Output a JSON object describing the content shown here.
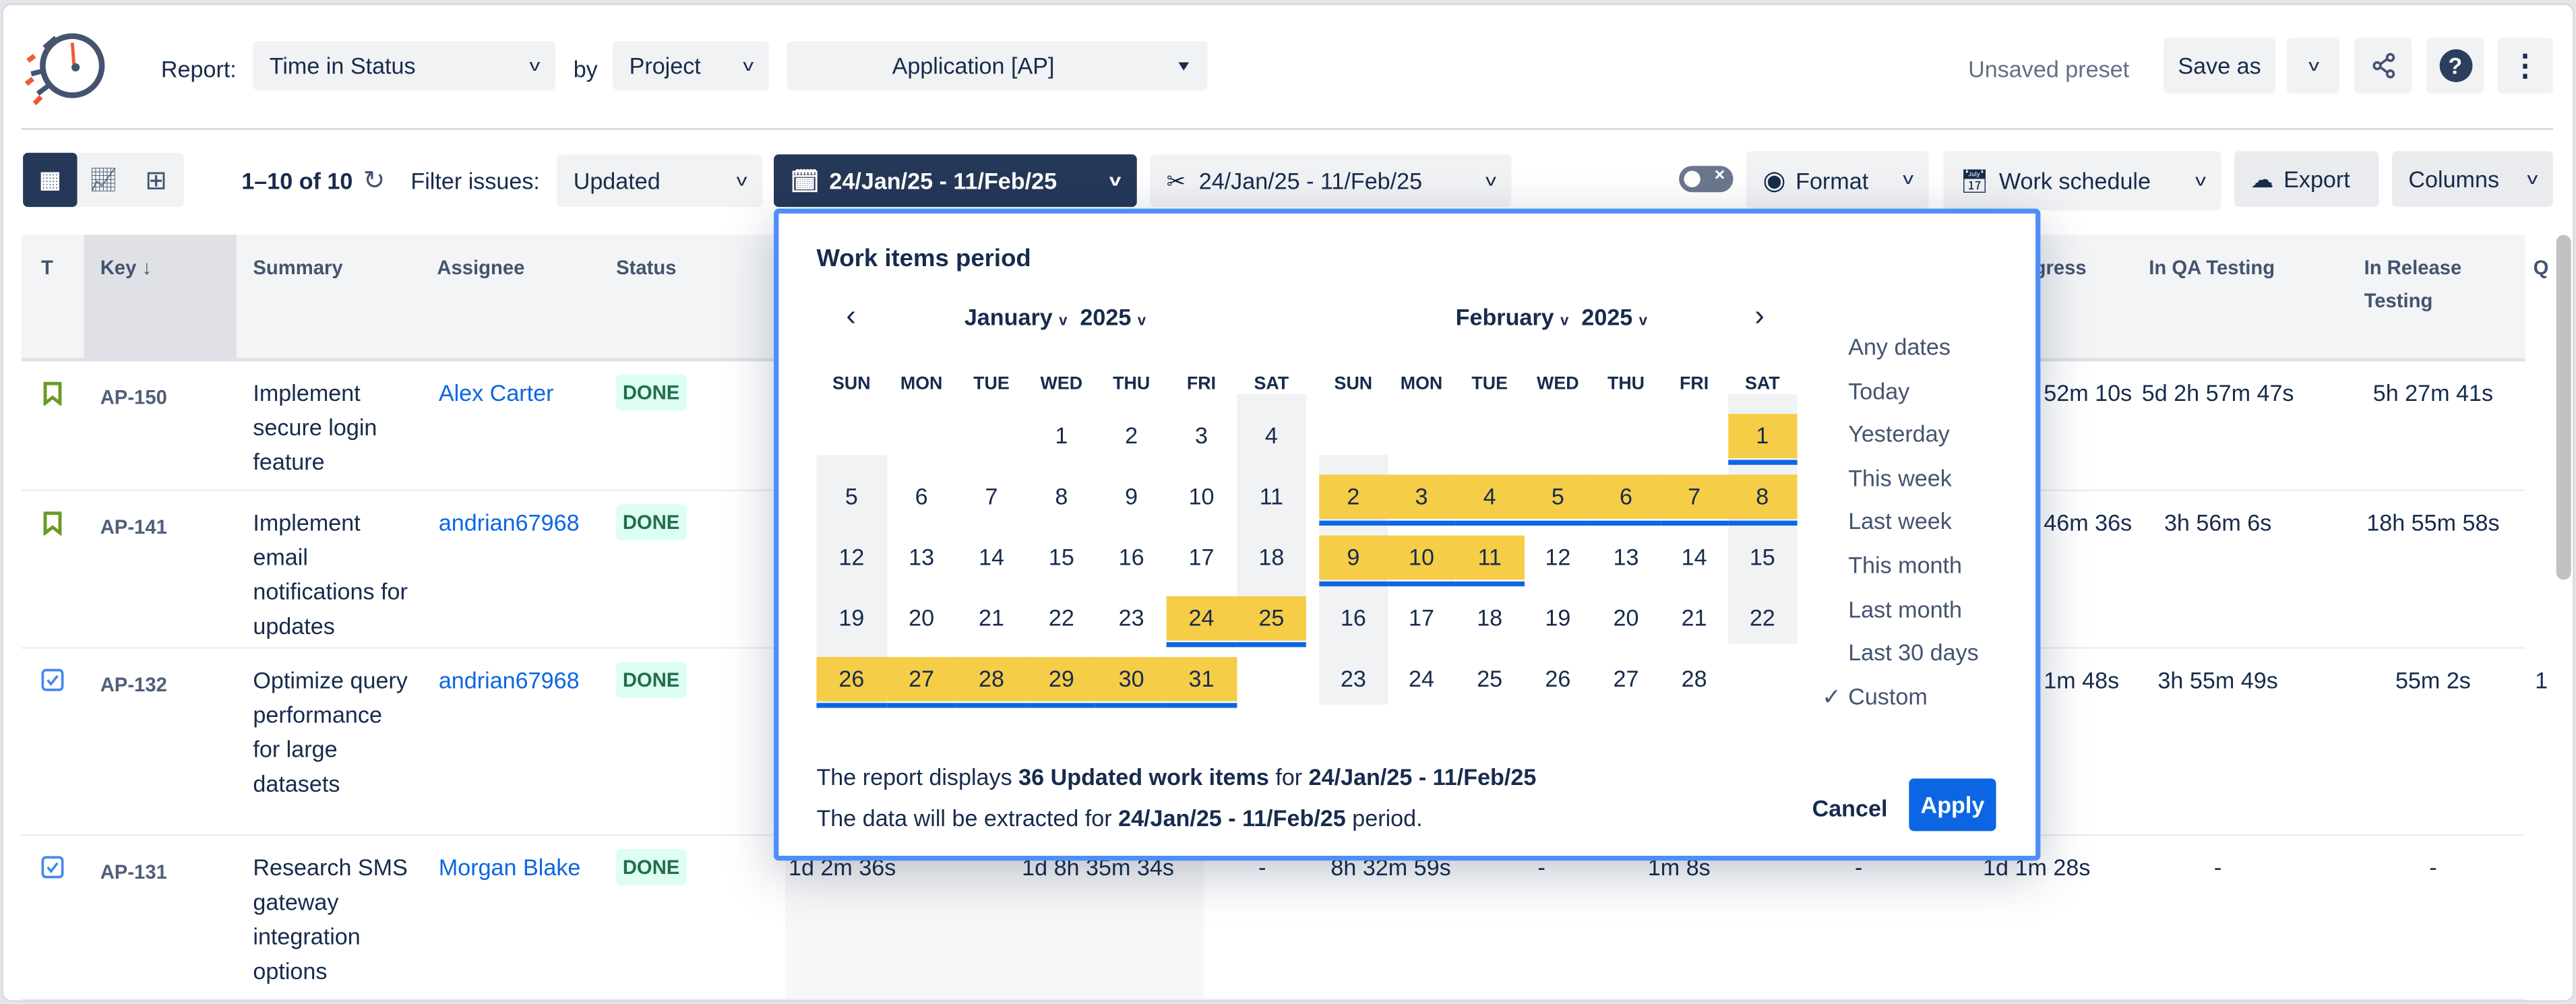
{
  "header": {
    "report_label": "Report:",
    "report_value": "Time in Status",
    "by_label": "by",
    "group_value": "Project",
    "project_value": "Application [AP]",
    "preset_status": "Unsaved preset",
    "save_as": "Save as"
  },
  "toolbar": {
    "count": "1–10 of 10",
    "filter_label": "Filter issues:",
    "filter_value": "Updated",
    "date_range": "24/Jan/25 - 11/Feb/25",
    "cut_range": "24/Jan/25 - 11/Feb/25",
    "format": "Format",
    "work_schedule": "Work schedule",
    "export": "Export",
    "columns": "Columns"
  },
  "colors": {
    "navy": "#253858",
    "selected_day": "#f5cd47",
    "accent": "#0c66e4",
    "done_bg": "#dcfff1",
    "done_text": "#216e4e",
    "story_icon": "#6a9a23"
  },
  "table": {
    "headers": {
      "type": "T",
      "key": "Key",
      "summary": "Summary",
      "assignee": "Assignee",
      "status": "Status",
      "in_progress": "In Progress",
      "in_qa": "In QA Testing",
      "in_release": "In Release Testing",
      "q": "Q"
    },
    "rows": [
      {
        "type": "story",
        "key": "AP-150",
        "summary": "Implement secure login feature",
        "assignee": "Alex Carter",
        "status": "DONE",
        "in_progress": "52m 10s",
        "in_qa": "5d 2h 57m 47s",
        "in_release": "5h 27m 41s",
        "q": ""
      },
      {
        "type": "story",
        "key": "AP-141",
        "summary": "Implement email notifications for updates",
        "assignee": "andrian67968",
        "status": "DONE",
        "in_progress": "46m 36s",
        "in_qa": "3h 56m 6s",
        "in_release": "18h 55m 58s",
        "q": ""
      },
      {
        "type": "task",
        "key": "AP-132",
        "summary": "Optimize query performance for large datasets",
        "assignee": "andrian67968",
        "status": "DONE",
        "in_progress": "1m 48s",
        "in_qa": "3h 55m 49s",
        "in_release": "55m 2s",
        "q": "1"
      },
      {
        "type": "task",
        "key": "AP-131",
        "summary": "Research SMS gateway integration options",
        "assignee": "Morgan Blake",
        "status": "DONE",
        "hidden_cols": [
          "1d 2m 36s",
          "1d 8h 35m 34s",
          "-",
          "8h 32m 59s",
          "-",
          "1m 8s",
          "-"
        ],
        "in_progress": "1d 1m 28s",
        "in_qa": "-",
        "in_release": "-",
        "q": ""
      }
    ]
  },
  "popup": {
    "title": "Work items period",
    "weekdays": [
      "SUN",
      "MON",
      "TUE",
      "WED",
      "THU",
      "FRI",
      "SAT"
    ],
    "months": [
      {
        "month": "January",
        "year": "2025",
        "weeks": [
          [
            null,
            null,
            null,
            1,
            2,
            3,
            4
          ],
          [
            5,
            6,
            7,
            8,
            9,
            10,
            11
          ],
          [
            12,
            13,
            14,
            15,
            16,
            17,
            18
          ],
          [
            19,
            20,
            21,
            22,
            23,
            24,
            25
          ],
          [
            26,
            27,
            28,
            29,
            30,
            31,
            null
          ]
        ],
        "selected_from": 24,
        "selected_to": 31
      },
      {
        "month": "February",
        "year": "2025",
        "weeks": [
          [
            null,
            null,
            null,
            null,
            null,
            null,
            1
          ],
          [
            2,
            3,
            4,
            5,
            6,
            7,
            8
          ],
          [
            9,
            10,
            11,
            12,
            13,
            14,
            15
          ],
          [
            16,
            17,
            18,
            19,
            20,
            21,
            22
          ],
          [
            23,
            24,
            25,
            26,
            27,
            28,
            null
          ]
        ],
        "selected_from": 1,
        "selected_to": 11
      }
    ],
    "presets": [
      "Any dates",
      "Today",
      "Yesterday",
      "This week",
      "Last week",
      "This month",
      "Last month",
      "Last 30 days",
      "Custom"
    ],
    "active_preset": "Custom",
    "summary1": {
      "a": "The report displays ",
      "b": "36 Updated work items",
      "c": " for ",
      "d": "24/Jan/25 - 11/Feb/25"
    },
    "summary2": {
      "a": "The data will be extracted for ",
      "b": "24/Jan/25 - 11/Feb/25",
      "c": " period."
    },
    "cancel": "Cancel",
    "apply": "Apply"
  }
}
